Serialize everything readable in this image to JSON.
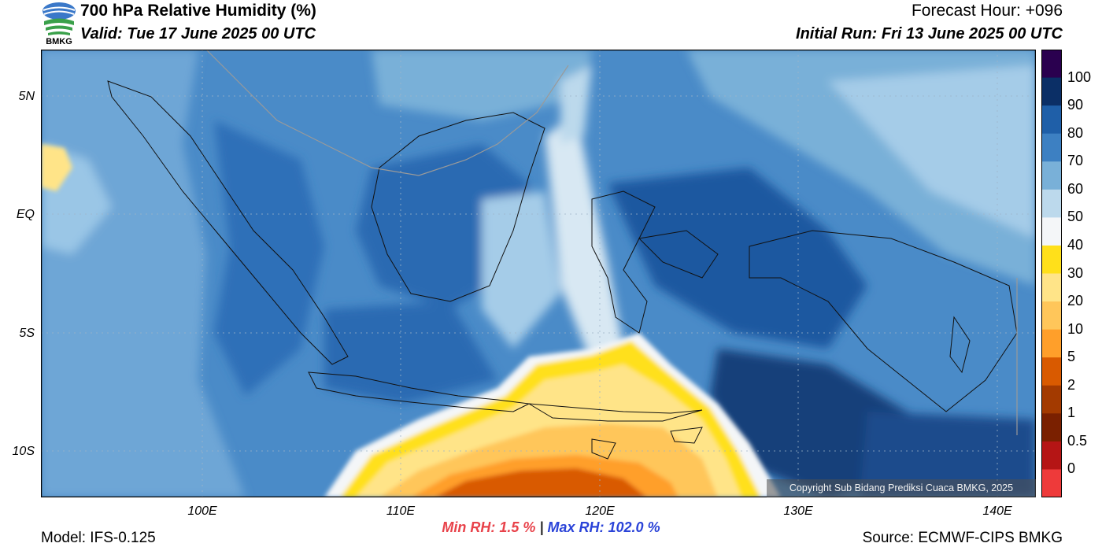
{
  "header": {
    "title": "700 hPa Relative Humidity (%)",
    "valid": "Valid: Tue 17 June 2025 00 UTC",
    "forecast_hour": "Forecast Hour: +096",
    "initial_run": "Initial Run: Fri 13 June 2025 00 UTC",
    "logo_text": "BMKG"
  },
  "axes": {
    "lat_labels": [
      "5N",
      "EQ",
      "5S",
      "10S"
    ],
    "lon_labels": [
      "100E",
      "110E",
      "120E",
      "130E",
      "140E"
    ]
  },
  "colorbar": {
    "labels": [
      "100",
      "90",
      "80",
      "70",
      "60",
      "50",
      "40",
      "30",
      "20",
      "10",
      "5",
      "2",
      "1",
      "0.5",
      "0"
    ],
    "colors": [
      "#2a004f",
      "#0b2f66",
      "#1f5fa8",
      "#3d80c2",
      "#79b0d8",
      "#bcd9ec",
      "#f4f6f8",
      "#ffe01a",
      "#ffe488",
      "#ffc65a",
      "#ff9f2a",
      "#d95a00",
      "#a33a00",
      "#7a2000",
      "#b51515",
      "#ee3a3a"
    ]
  },
  "stats": {
    "min_rh": "Min RH:   1.5 %",
    "separator": "|",
    "max_rh": "Max RH: 102.0 %"
  },
  "footer": {
    "model": "Model: IFS-0.125",
    "source": "Source: ECMWF-CIPS BMKG",
    "copyright": "Copyright Sub Bidang Prediksi Cuaca BMKG, 2025"
  }
}
